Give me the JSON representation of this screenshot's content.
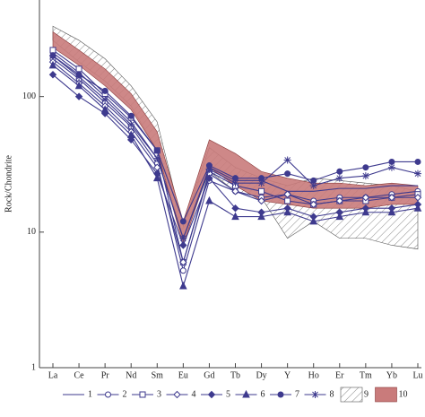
{
  "chart_data": {
    "type": "line",
    "ylabel": "Rock/Chondrite",
    "yscale": "log",
    "ylim": [
      1,
      500
    ],
    "yticks": [
      1,
      10,
      100
    ],
    "categories": [
      "La",
      "Ce",
      "Pr",
      "Nd",
      "Sm",
      "Eu",
      "Gd",
      "Tb",
      "Dy",
      "Y",
      "Ho",
      "Er",
      "Tm",
      "Yb",
      "Lu"
    ],
    "series": [
      {
        "name": "1",
        "color": "#3e3a8e",
        "marker": "none",
        "values": [
          210,
          150,
          100,
          65,
          35,
          9,
          30,
          24,
          24,
          20,
          20,
          21,
          21,
          22,
          22
        ]
      },
      {
        "name": "2",
        "color": "#3e3a8e",
        "marker": "open-circle",
        "values": [
          190,
          135,
          90,
          60,
          32,
          5.2,
          24,
          20,
          18,
          19,
          17,
          18,
          18,
          19,
          20
        ]
      },
      {
        "name": "3",
        "color": "#3e3a8e",
        "marker": "open-square",
        "values": [
          220,
          160,
          105,
          70,
          40,
          6,
          28,
          22,
          20,
          17,
          16,
          17,
          17,
          18,
          19
        ]
      },
      {
        "name": "4",
        "color": "#3e3a8e",
        "marker": "open-diamond",
        "values": [
          180,
          125,
          85,
          55,
          30,
          6,
          27,
          20,
          17,
          19,
          16,
          17,
          18,
          18,
          18
        ]
      },
      {
        "name": "5",
        "color": "#3e3a8e",
        "marker": "diamond",
        "values": [
          145,
          100,
          75,
          48,
          27,
          8,
          25,
          15,
          14,
          15,
          13,
          14,
          15,
          15,
          16
        ]
      },
      {
        "name": "6",
        "color": "#3e3a8e",
        "marker": "triangle",
        "values": [
          170,
          120,
          80,
          52,
          25,
          4,
          17,
          13,
          13,
          14,
          12,
          13,
          14,
          14,
          15
        ]
      },
      {
        "name": "7",
        "color": "#3e3a8e",
        "marker": "circle",
        "values": [
          200,
          145,
          110,
          72,
          40,
          12,
          31,
          25,
          25,
          27,
          24,
          28,
          30,
          33,
          33
        ]
      },
      {
        "name": "8",
        "color": "#3e3a8e",
        "marker": "star",
        "values": [
          200,
          140,
          95,
          62,
          35,
          9,
          29,
          23,
          23,
          34,
          22,
          25,
          26,
          30,
          27
        ]
      },
      {
        "name": "9",
        "color": "#555555",
        "fill": "hatch",
        "low": [
          260,
          180,
          130,
          85,
          40,
          9,
          28,
          20,
          18,
          9,
          12,
          9,
          9,
          8,
          7.5
        ],
        "high": [
          330,
          260,
          190,
          120,
          65,
          11,
          42,
          30,
          25,
          22,
          25,
          24,
          23,
          22,
          20
        ]
      },
      {
        "name": "10",
        "color": "#c97b7b",
        "fill": "solid",
        "low": [
          230,
          170,
          120,
          80,
          40,
          8,
          30,
          22,
          17,
          16,
          15,
          15,
          15,
          16,
          16
        ],
        "high": [
          300,
          220,
          160,
          105,
          55,
          12,
          48,
          38,
          28,
          25,
          23,
          23,
          22,
          23,
          22
        ]
      }
    ]
  }
}
